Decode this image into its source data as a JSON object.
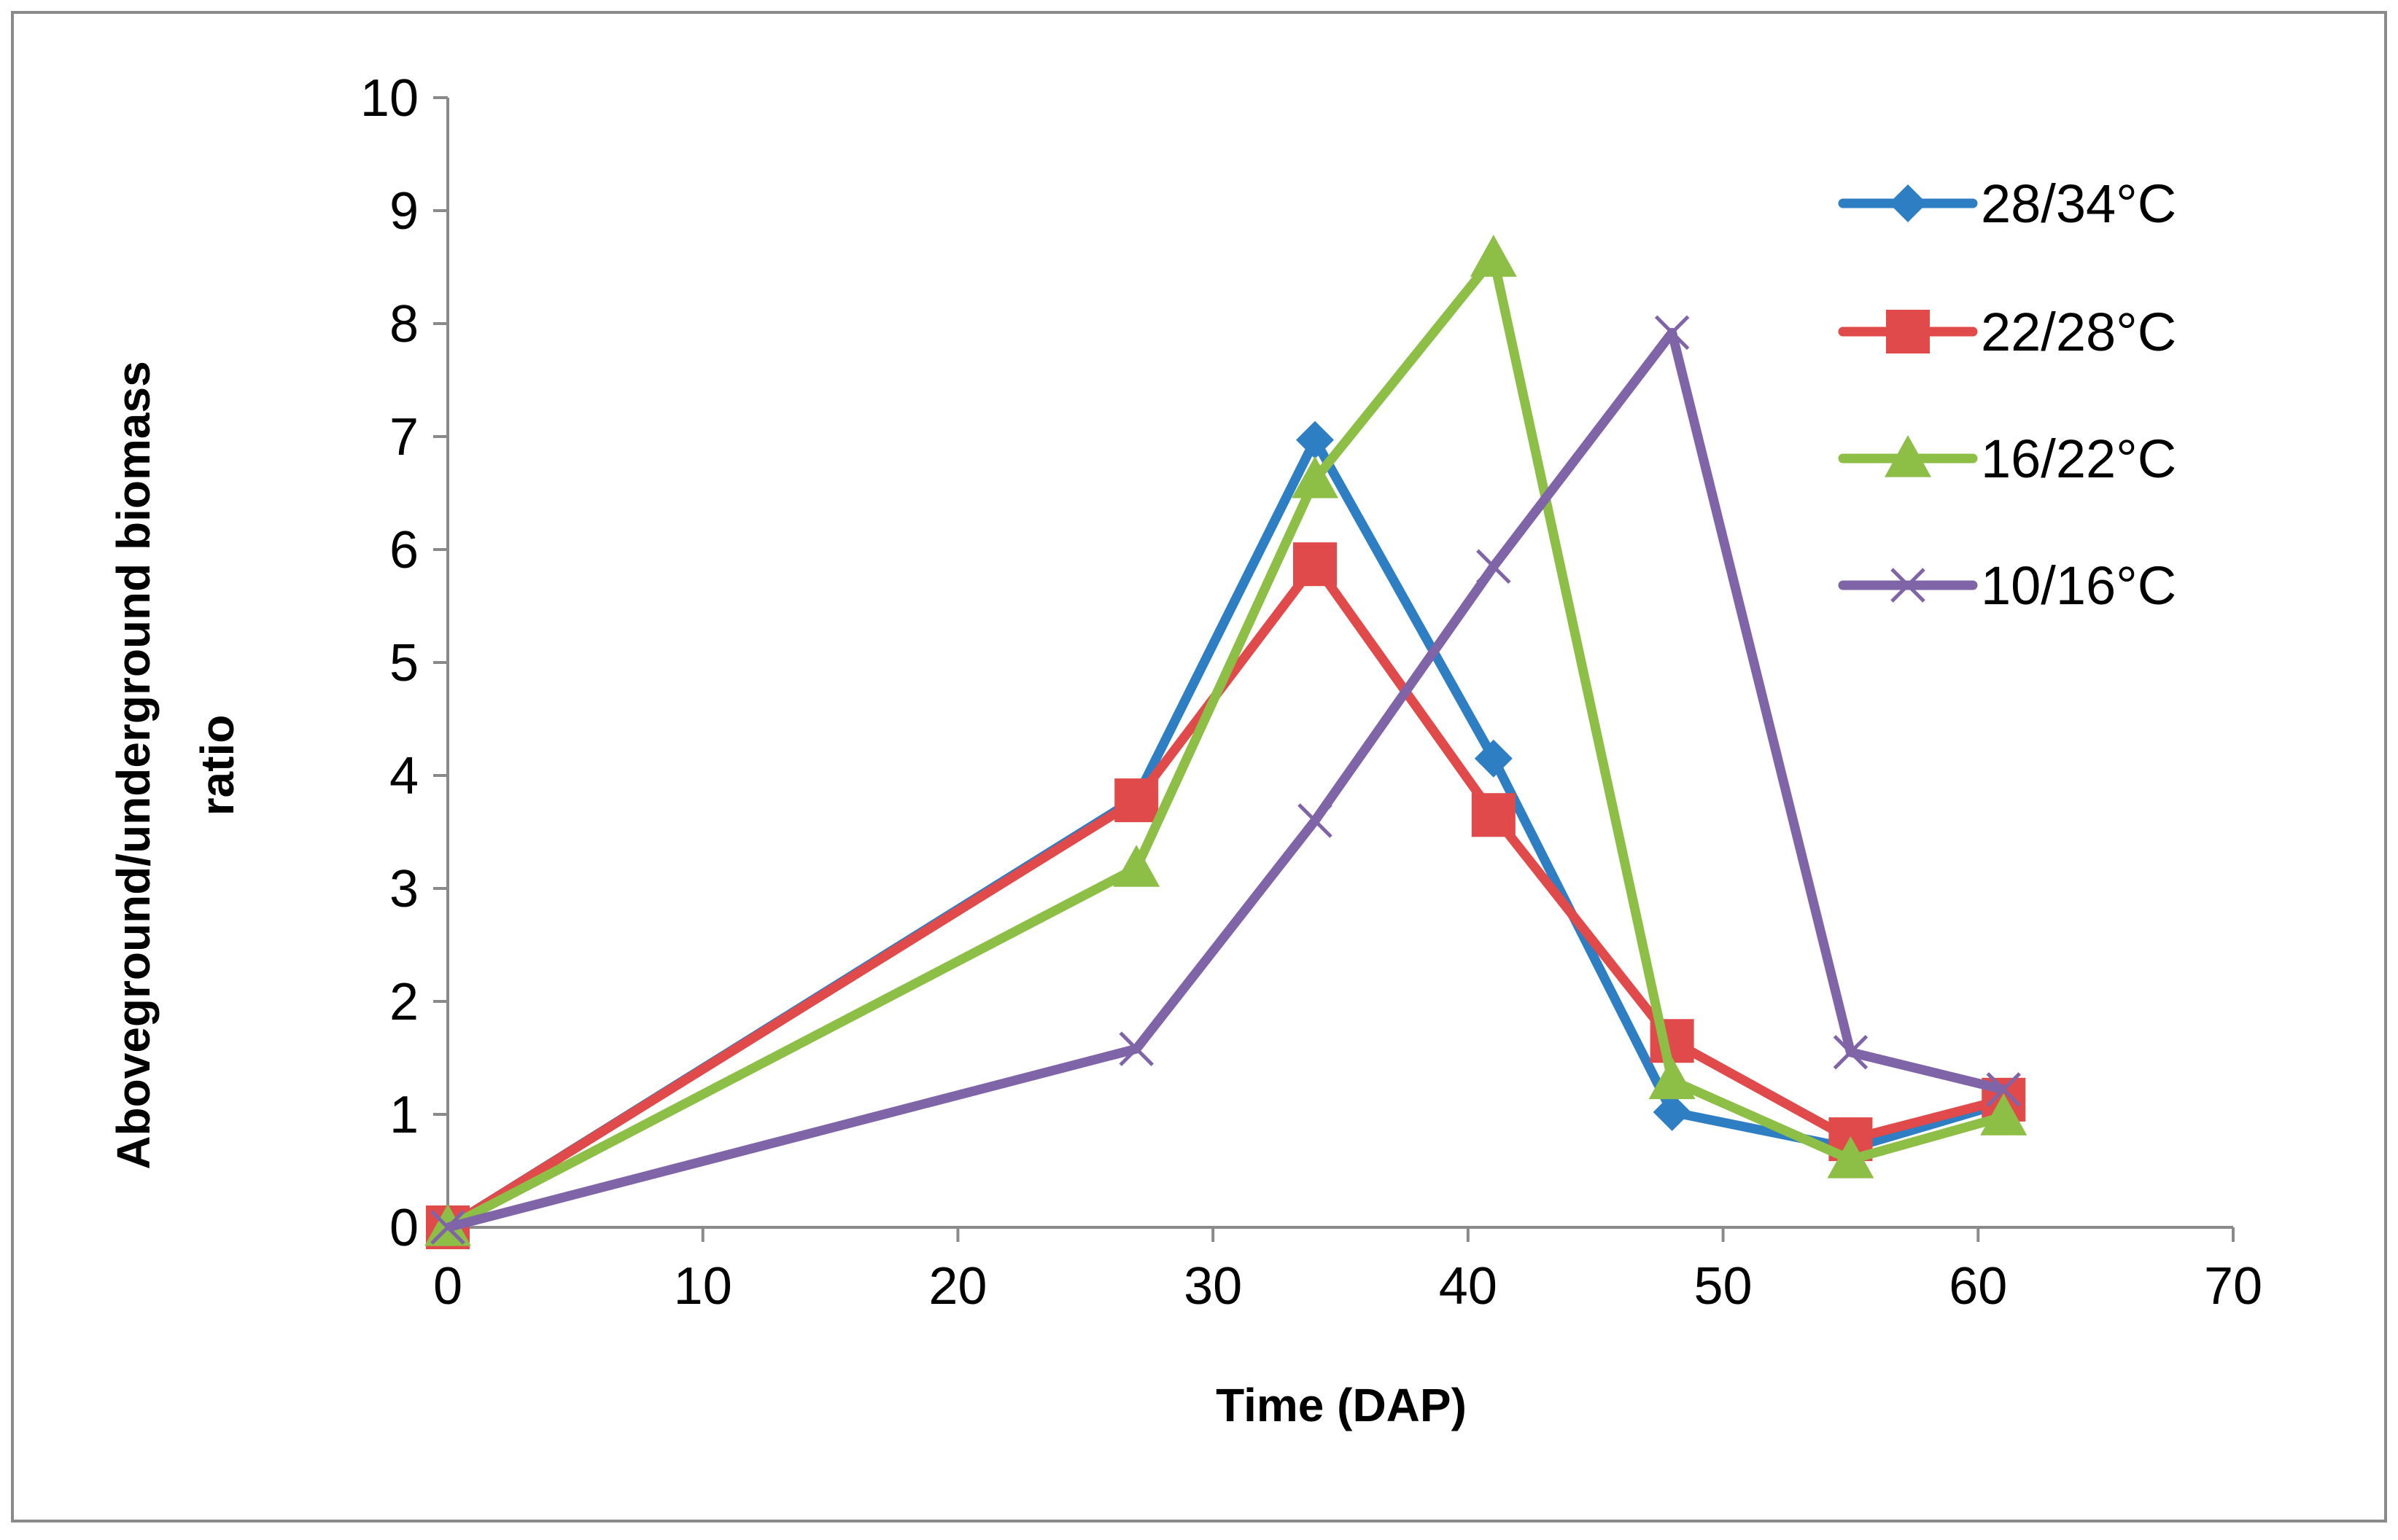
{
  "chart_data": {
    "type": "line",
    "title": "",
    "xlabel": "Time (DAP)",
    "ylabel_lines": [
      "Aboveground/underground biomass",
      "ratio"
    ],
    "xlim": [
      0,
      70
    ],
    "ylim": [
      0,
      10
    ],
    "xticks": [
      0,
      10,
      20,
      30,
      40,
      50,
      60,
      70
    ],
    "yticks": [
      0,
      1,
      2,
      3,
      4,
      5,
      6,
      7,
      8,
      9,
      10
    ],
    "grid": false,
    "legend_position": "top-right",
    "x": [
      0,
      27,
      34,
      41,
      48,
      55,
      61
    ],
    "series": [
      {
        "name": "28/34°C",
        "color": "#2E7EC3",
        "marker": "diamond",
        "values": [
          0,
          3.8,
          6.97,
          4.15,
          1.02,
          0.7,
          1.1
        ]
      },
      {
        "name": "22/28°C",
        "color": "#E04A4A",
        "marker": "square",
        "values": [
          0,
          3.78,
          5.87,
          3.65,
          1.65,
          0.78,
          1.13
        ]
      },
      {
        "name": "16/22°C",
        "color": "#8DBE45",
        "marker": "triangle",
        "values": [
          0,
          3.18,
          6.62,
          8.58,
          1.3,
          0.6,
          0.98
        ]
      },
      {
        "name": "10/16°C",
        "color": "#8064A8",
        "marker": "x",
        "values": [
          0,
          1.58,
          3.6,
          5.85,
          7.92,
          1.55,
          1.22
        ]
      }
    ]
  }
}
